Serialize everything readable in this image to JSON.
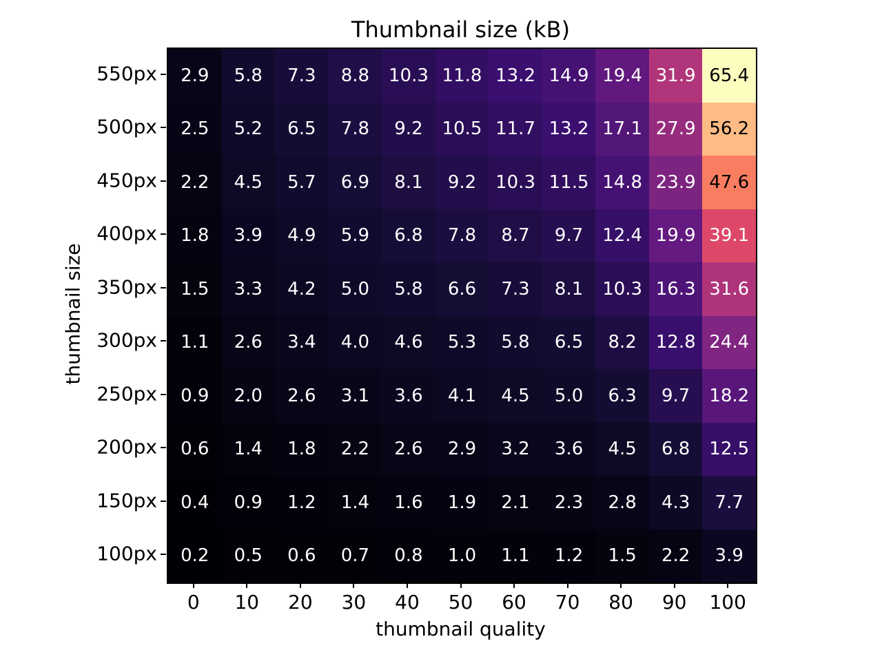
{
  "chart_data": {
    "type": "heatmap",
    "title": "Thumbnail size (kB)",
    "xlabel": "thumbnail quality",
    "ylabel": "thumbnail size",
    "x_tick_labels": [
      "0",
      "10",
      "20",
      "30",
      "40",
      "50",
      "60",
      "70",
      "80",
      "90",
      "100"
    ],
    "y_tick_labels": [
      "550px",
      "500px",
      "450px",
      "400px",
      "350px",
      "300px",
      "250px",
      "200px",
      "150px",
      "100px"
    ],
    "values": [
      [
        2.9,
        5.8,
        7.3,
        8.8,
        10.3,
        11.8,
        13.2,
        14.9,
        19.4,
        31.9,
        65.4
      ],
      [
        2.5,
        5.2,
        6.5,
        7.8,
        9.2,
        10.5,
        11.7,
        13.2,
        17.1,
        27.9,
        56.2
      ],
      [
        2.2,
        4.5,
        5.7,
        6.9,
        8.1,
        9.2,
        10.3,
        11.5,
        14.8,
        23.9,
        47.6
      ],
      [
        1.8,
        3.9,
        4.9,
        5.9,
        6.8,
        7.8,
        8.7,
        9.7,
        12.4,
        19.9,
        39.1
      ],
      [
        1.5,
        3.3,
        4.2,
        5.0,
        5.8,
        6.6,
        7.3,
        8.1,
        10.3,
        16.3,
        31.6
      ],
      [
        1.1,
        2.6,
        3.4,
        4.0,
        4.6,
        5.3,
        5.8,
        6.5,
        8.2,
        12.8,
        24.4
      ],
      [
        0.9,
        2.0,
        2.6,
        3.1,
        3.6,
        4.1,
        4.5,
        5.0,
        6.3,
        9.7,
        18.2
      ],
      [
        0.6,
        1.4,
        1.8,
        2.2,
        2.6,
        2.9,
        3.2,
        3.6,
        4.5,
        6.8,
        12.5
      ],
      [
        0.4,
        0.9,
        1.2,
        1.4,
        1.6,
        1.9,
        2.1,
        2.3,
        2.8,
        4.3,
        7.7
      ],
      [
        0.2,
        0.5,
        0.6,
        0.7,
        0.8,
        1.0,
        1.1,
        1.2,
        1.5,
        2.2,
        3.9
      ]
    ],
    "value_decimals": 1,
    "vmin": 0.2,
    "vmax": 65.4,
    "colormap": "magma",
    "colormap_stops": [
      [
        0.0,
        "#000004"
      ],
      [
        0.1,
        "#150d35"
      ],
      [
        0.2,
        "#3b0f70"
      ],
      [
        0.3,
        "#631a80"
      ],
      [
        0.4,
        "#8c2981"
      ],
      [
        0.5,
        "#b73779"
      ],
      [
        0.6,
        "#de4968"
      ],
      [
        0.7,
        "#f7705c"
      ],
      [
        0.8,
        "#fe9f6d"
      ],
      [
        0.9,
        "#fecf92"
      ],
      [
        1.0,
        "#fcfdbf"
      ]
    ],
    "annotation_color_light": "#ffffff",
    "annotation_color_dark": "#000000",
    "grid": false,
    "legend": "none",
    "background_color": "#ffffff",
    "axis_color": "#000000"
  }
}
